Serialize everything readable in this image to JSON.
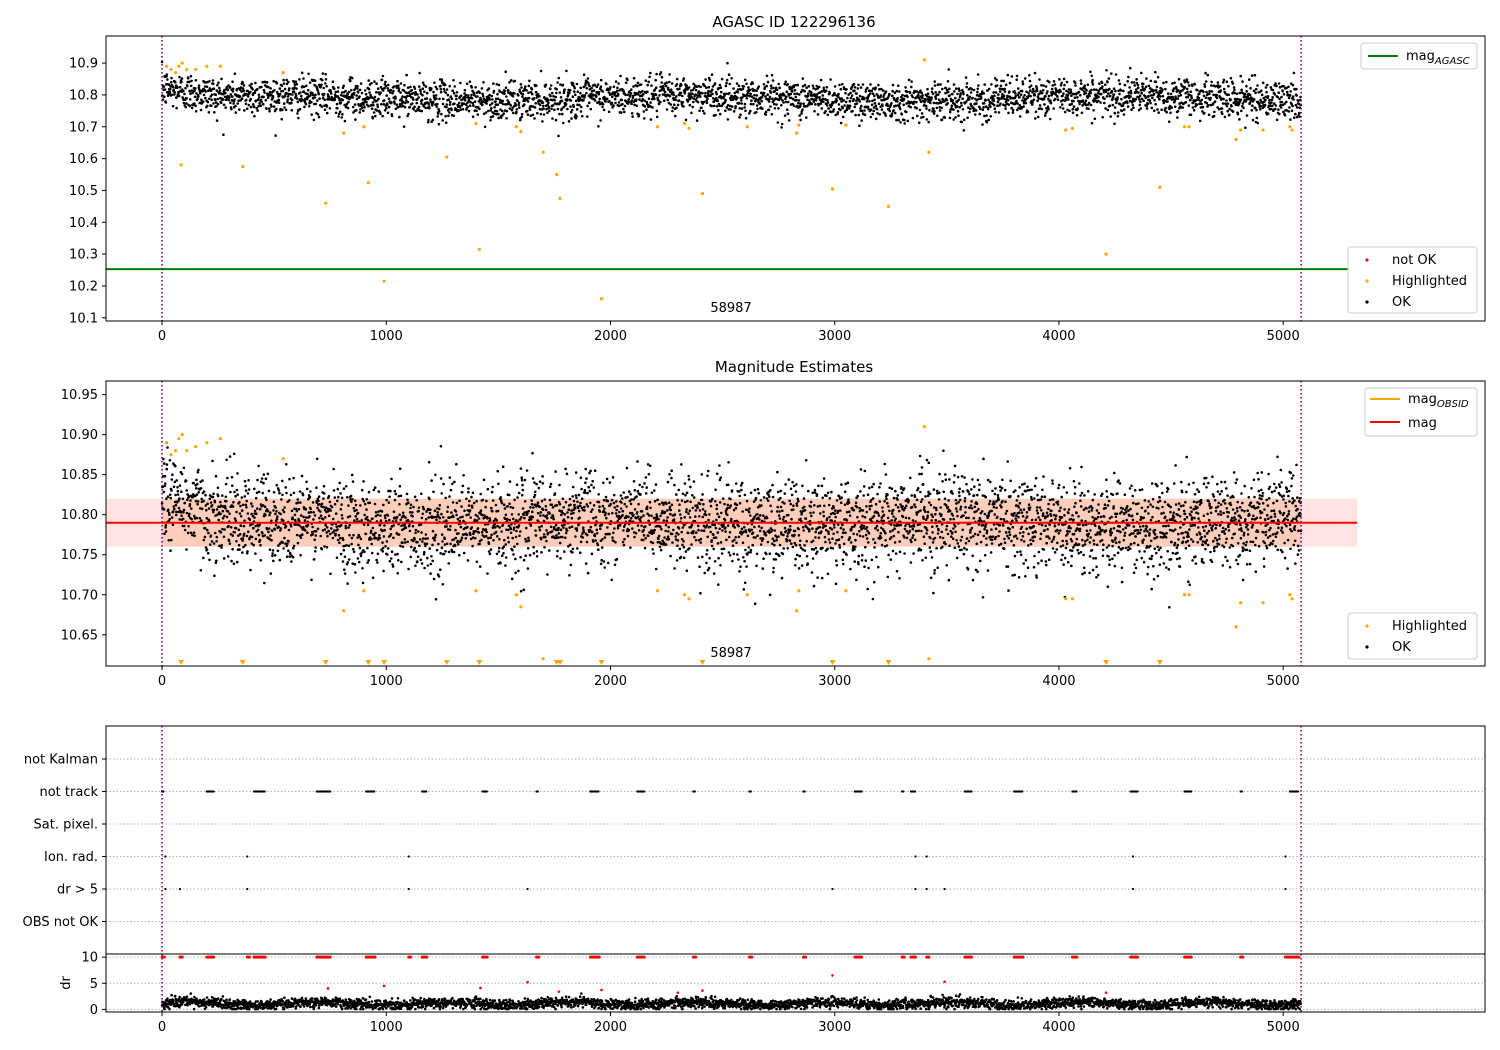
{
  "chart_data": [
    {
      "type": "scatter",
      "title": "AGASC ID 122296136",
      "xlabel": "",
      "ylabel": "",
      "xlim": [
        -250,
        5900
      ],
      "ylim": [
        10.09,
        10.985
      ],
      "x_ticks": [
        0,
        1000,
        2000,
        3000,
        4000,
        5000
      ],
      "y_ticks": [
        10.1,
        10.2,
        10.3,
        10.4,
        10.5,
        10.6,
        10.7,
        10.8,
        10.9
      ],
      "grid": false,
      "annotation": "58987",
      "vlines": [
        0,
        5080
      ],
      "hline": {
        "name": "mag",
        "subscript": "AGASC",
        "value": 10.253,
        "x_range": [
          -250,
          5330
        ],
        "color": "#008000"
      },
      "legend_top": [
        {
          "name": "mag",
          "subscript": "AGASC",
          "color": "#008000"
        }
      ],
      "legend_bottom": [
        {
          "name": "not OK",
          "color": "#ff0000"
        },
        {
          "name": "Highlighted",
          "color": "#ffa500"
        },
        {
          "name": "OK",
          "color": "#000000"
        }
      ],
      "ok_series": {
        "x_range": [
          0,
          5080
        ],
        "mean": 10.79,
        "spread": 0.03
      },
      "highlighted": [
        [
          20,
          10.89
        ],
        [
          40,
          10.88
        ],
        [
          60,
          10.87
        ],
        [
          75,
          10.89
        ],
        [
          90,
          10.9
        ],
        [
          110,
          10.88
        ],
        [
          150,
          10.88
        ],
        [
          200,
          10.89
        ],
        [
          260,
          10.89
        ],
        [
          540,
          10.87
        ],
        [
          85,
          10.58
        ],
        [
          360,
          10.575
        ],
        [
          730,
          10.46
        ],
        [
          810,
          10.68
        ],
        [
          900,
          10.7
        ],
        [
          920,
          10.525
        ],
        [
          1270,
          10.605
        ],
        [
          1400,
          10.71
        ],
        [
          1415,
          10.315
        ],
        [
          1580,
          10.7
        ],
        [
          1600,
          10.685
        ],
        [
          1700,
          10.62
        ],
        [
          1760,
          10.55
        ],
        [
          1775,
          10.475
        ],
        [
          1960,
          10.16
        ],
        [
          990,
          10.215
        ],
        [
          2210,
          10.7
        ],
        [
          2330,
          10.71
        ],
        [
          2350,
          10.695
        ],
        [
          2410,
          10.49
        ],
        [
          2610,
          10.7
        ],
        [
          2830,
          10.68
        ],
        [
          2840,
          10.705
        ],
        [
          2990,
          10.505
        ],
        [
          3050,
          10.705
        ],
        [
          3240,
          10.45
        ],
        [
          3400,
          10.91
        ],
        [
          3420,
          10.62
        ],
        [
          4030,
          10.69
        ],
        [
          4060,
          10.695
        ],
        [
          4210,
          10.3
        ],
        [
          4450,
          10.51
        ],
        [
          4560,
          10.7
        ],
        [
          4580,
          10.7
        ],
        [
          4790,
          10.66
        ],
        [
          4810,
          10.69
        ],
        [
          4910,
          10.69
        ],
        [
          5030,
          10.7
        ],
        [
          5040,
          10.69
        ]
      ]
    },
    {
      "type": "scatter",
      "title": "Magnitude Estimates",
      "xlabel": "",
      "ylabel": "",
      "xlim": [
        -250,
        5900
      ],
      "ylim": [
        10.611,
        10.967
      ],
      "x_ticks": [
        0,
        1000,
        2000,
        3000,
        4000,
        5000
      ],
      "y_ticks": [
        10.65,
        10.7,
        10.75,
        10.8,
        10.85,
        10.9,
        10.95
      ],
      "grid": false,
      "annotation": "58987",
      "vlines": [
        0,
        5080
      ],
      "hline": {
        "name": "mag",
        "value": 10.79,
        "x_range": [
          -250,
          5330
        ],
        "color": "#ff0000"
      },
      "band": {
        "low": 10.76,
        "high": 10.82,
        "x_range": [
          -250,
          5330
        ]
      },
      "legend_top": [
        {
          "name": "mag",
          "subscript": "OBSID",
          "color": "#ffa500"
        },
        {
          "name": "mag",
          "color": "#ff0000"
        }
      ],
      "legend_bottom": [
        {
          "name": "Highlighted",
          "color": "#ffa500"
        },
        {
          "name": "OK",
          "color": "#000000"
        }
      ],
      "ok_series": {
        "x_range": [
          0,
          5080
        ],
        "mean": 10.79,
        "spread": 0.028
      },
      "highlighted": [
        [
          20,
          10.89
        ],
        [
          40,
          10.875
        ],
        [
          60,
          10.88
        ],
        [
          75,
          10.895
        ],
        [
          90,
          10.9
        ],
        [
          110,
          10.88
        ],
        [
          150,
          10.885
        ],
        [
          200,
          10.89
        ],
        [
          260,
          10.895
        ],
        [
          540,
          10.87
        ],
        [
          810,
          10.68
        ],
        [
          900,
          10.705
        ],
        [
          1400,
          10.705
        ],
        [
          1580,
          10.7
        ],
        [
          1600,
          10.685
        ],
        [
          1700,
          10.62
        ],
        [
          2210,
          10.705
        ],
        [
          2330,
          10.7
        ],
        [
          2350,
          10.695
        ],
        [
          2610,
          10.7
        ],
        [
          2830,
          10.68
        ],
        [
          2840,
          10.705
        ],
        [
          3050,
          10.705
        ],
        [
          3400,
          10.91
        ],
        [
          3420,
          10.62
        ],
        [
          4030,
          10.695
        ],
        [
          4060,
          10.695
        ],
        [
          4560,
          10.7
        ],
        [
          4580,
          10.7
        ],
        [
          4790,
          10.66
        ],
        [
          4810,
          10.69
        ],
        [
          4910,
          10.69
        ],
        [
          5030,
          10.7
        ],
        [
          5040,
          10.695
        ]
      ],
      "below_range_markers": [
        85,
        360,
        730,
        920,
        990,
        1270,
        1415,
        1760,
        1775,
        1960,
        2410,
        2990,
        3240,
        4210,
        4450
      ]
    },
    {
      "type": "scatter",
      "title": "",
      "xlim": [
        -250,
        5900
      ],
      "categories": [
        "not Kalman",
        "not track",
        "Sat. pixel.",
        "Ion. rad.",
        "dr > 5",
        "OBS not OK"
      ],
      "grid": true,
      "vlines": [
        0,
        5080
      ],
      "flags": {
        "not track": [
          [
            0,
            10
          ],
          [
            200,
            230
          ],
          [
            410,
            460
          ],
          [
            690,
            750
          ],
          [
            910,
            950
          ],
          [
            1160,
            1180
          ],
          [
            1430,
            1450
          ],
          [
            1670,
            1680
          ],
          [
            1910,
            1950
          ],
          [
            2120,
            2150
          ],
          [
            2370,
            2380
          ],
          [
            2620,
            2630
          ],
          [
            2860,
            2870
          ],
          [
            3090,
            3120
          ],
          [
            3300,
            3310
          ],
          [
            3340,
            3360
          ],
          [
            3580,
            3610
          ],
          [
            3800,
            3840
          ],
          [
            4060,
            4080
          ],
          [
            4320,
            4350
          ],
          [
            4560,
            4590
          ],
          [
            4810,
            4820
          ],
          [
            5030,
            5070
          ]
        ],
        "Ion. rad.": [
          15,
          380,
          1100,
          3360,
          3410,
          4330,
          5010
        ],
        "dr > 5": [
          15,
          80,
          380,
          1100,
          1630,
          2990,
          3360,
          3410,
          3490,
          4330,
          5010
        ],
        "not Kalman": [],
        "Sat. pixel.": [],
        "OBS not OK": []
      }
    },
    {
      "type": "scatter",
      "title": "",
      "xlabel": "",
      "ylabel": "dr",
      "xlim": [
        -250,
        5900
      ],
      "ylim": [
        -0.5,
        10.6
      ],
      "x_ticks": [
        0,
        1000,
        2000,
        3000,
        4000,
        5000
      ],
      "y_ticks": [
        0,
        5,
        10
      ],
      "grid": true,
      "vlines": [
        0,
        5080
      ],
      "ok_series": {
        "x_range": [
          0,
          5080
        ],
        "mean": 1.1,
        "spread": 0.5
      },
      "red_points": [
        [
          740,
          4.0
        ],
        [
          990,
          4.5
        ],
        [
          1420,
          4.1
        ],
        [
          1630,
          5.2
        ],
        [
          1770,
          3.4
        ],
        [
          1960,
          3.7
        ],
        [
          2300,
          3.2
        ],
        [
          2410,
          3.6
        ],
        [
          2990,
          6.5
        ],
        [
          3490,
          5.3
        ],
        [
          4210,
          3.2
        ]
      ],
      "red_capped_ranges": [
        [
          0,
          10
        ],
        [
          80,
          90
        ],
        [
          200,
          230
        ],
        [
          380,
          390
        ],
        [
          410,
          460
        ],
        [
          690,
          750
        ],
        [
          910,
          950
        ],
        [
          1100,
          1110
        ],
        [
          1160,
          1180
        ],
        [
          1430,
          1450
        ],
        [
          1670,
          1680
        ],
        [
          1910,
          1950
        ],
        [
          2120,
          2150
        ],
        [
          2370,
          2380
        ],
        [
          2620,
          2630
        ],
        [
          2860,
          2870
        ],
        [
          3090,
          3120
        ],
        [
          3300,
          3310
        ],
        [
          3340,
          3360
        ],
        [
          3410,
          3420
        ],
        [
          3580,
          3610
        ],
        [
          3800,
          3840
        ],
        [
          4060,
          4080
        ],
        [
          4320,
          4350
        ],
        [
          4560,
          4590
        ],
        [
          4810,
          4820
        ],
        [
          5010,
          5070
        ]
      ]
    }
  ]
}
